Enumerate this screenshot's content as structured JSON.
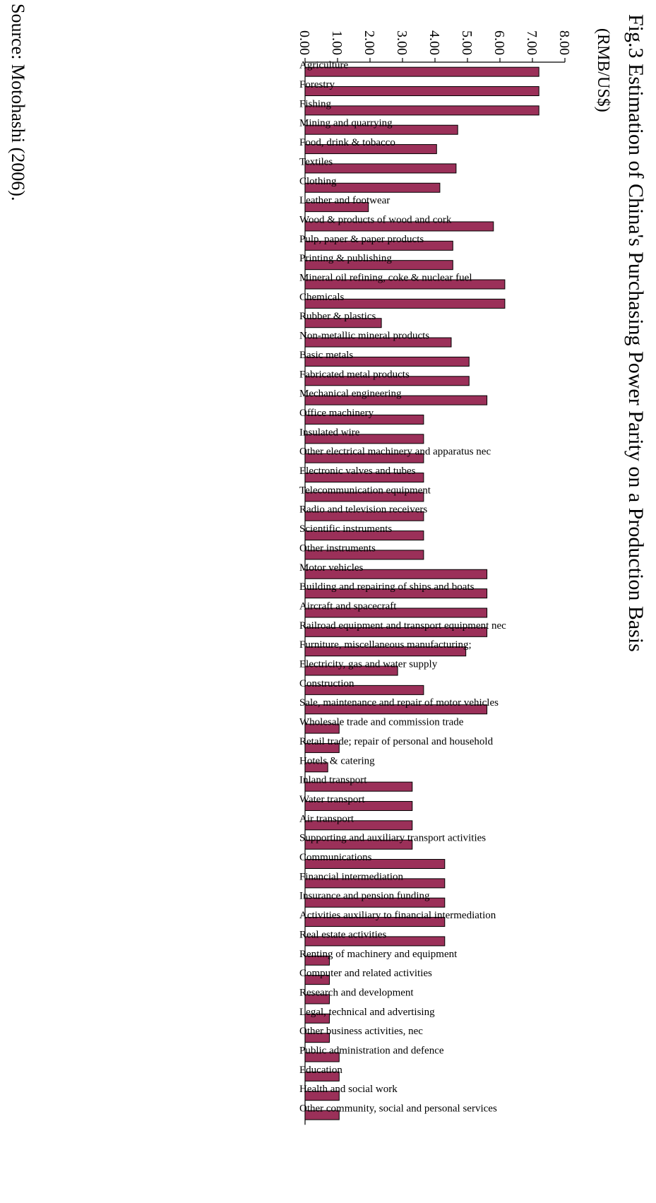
{
  "colors": {
    "bar": "#9b3059",
    "axis": "#000000"
  },
  "chart_data": {
    "type": "bar",
    "orientation": "horizontal",
    "title": "Fig.3 Estimation of China's Purchasing Power Parity on a Production Basis",
    "unit": "(RMB/US$)",
    "source": "Source: Motohashi (2006).",
    "xlim": [
      0,
      8
    ],
    "ticks": [
      "0.00",
      "1.00",
      "2.00",
      "3.00",
      "4.00",
      "5.00",
      "6.00",
      "7.00",
      "8.00"
    ],
    "categories": [
      "Agriculture",
      "Forestry",
      "Fishing",
      "Mining and quarrying",
      "Food, drink & tobacco",
      "Textiles",
      "Clothing",
      "Leather and footwear",
      "Wood & products of wood and cork",
      "Pulp, paper & paper products",
      "Printing & publishing",
      "Mineral oil refining, coke & nuclear fuel",
      "Chemicals",
      "Rubber & plastics",
      "Non-metallic mineral products",
      "Basic metals",
      "Fabricated metal products",
      "Mechanical engineering",
      "Office machinery",
      "Insulated wire",
      "Other electrical machinery and apparatus nec",
      "Electronic valves and tubes",
      "Telecommunication equipment",
      "Radio and television receivers",
      "Scientific instruments",
      "Other instruments",
      "Motor vehicles",
      "Building and repairing of ships and boats",
      "Aircraft and spacecraft",
      "Railroad equipment and transport equipment nec",
      "Furniture, miscellaneous manufacturing;",
      "Electricity, gas and water supply",
      "Construction",
      "Sale, maintenance and repair of motor vehicles",
      "Wholesale trade and commission trade",
      "Retail trade; repair of personal and household",
      "Hotels & catering",
      "Inland transport",
      "Water transport",
      "Air transport",
      "Supporting and auxiliary transport activities",
      "Communications",
      "Financial intermediation",
      "Insurance and pension funding",
      "Activities auxiliary to financial intermediation",
      "Real estate activities",
      "Renting of machinery and equipment",
      "Computer and related activities",
      "Research and development",
      "Legal, technical and advertising",
      "Other business activities, nec",
      "Public administration and defence",
      "Education",
      "Health and social work",
      "Other community, social and personal services"
    ],
    "values": [
      7.2,
      7.2,
      7.2,
      4.7,
      4.05,
      4.65,
      4.15,
      1.95,
      5.8,
      4.55,
      4.55,
      6.15,
      6.15,
      2.35,
      4.5,
      5.05,
      5.05,
      5.6,
      3.65,
      3.65,
      3.65,
      3.65,
      3.65,
      3.65,
      3.65,
      3.65,
      5.6,
      5.6,
      5.6,
      5.6,
      4.95,
      2.85,
      3.65,
      5.6,
      1.05,
      1.05,
      0.7,
      3.3,
      3.3,
      3.3,
      3.3,
      4.3,
      4.3,
      4.3,
      4.3,
      4.3,
      0.75,
      0.75,
      0.75,
      0.75,
      0.75,
      1.05,
      1.05,
      1.05,
      1.05
    ]
  }
}
